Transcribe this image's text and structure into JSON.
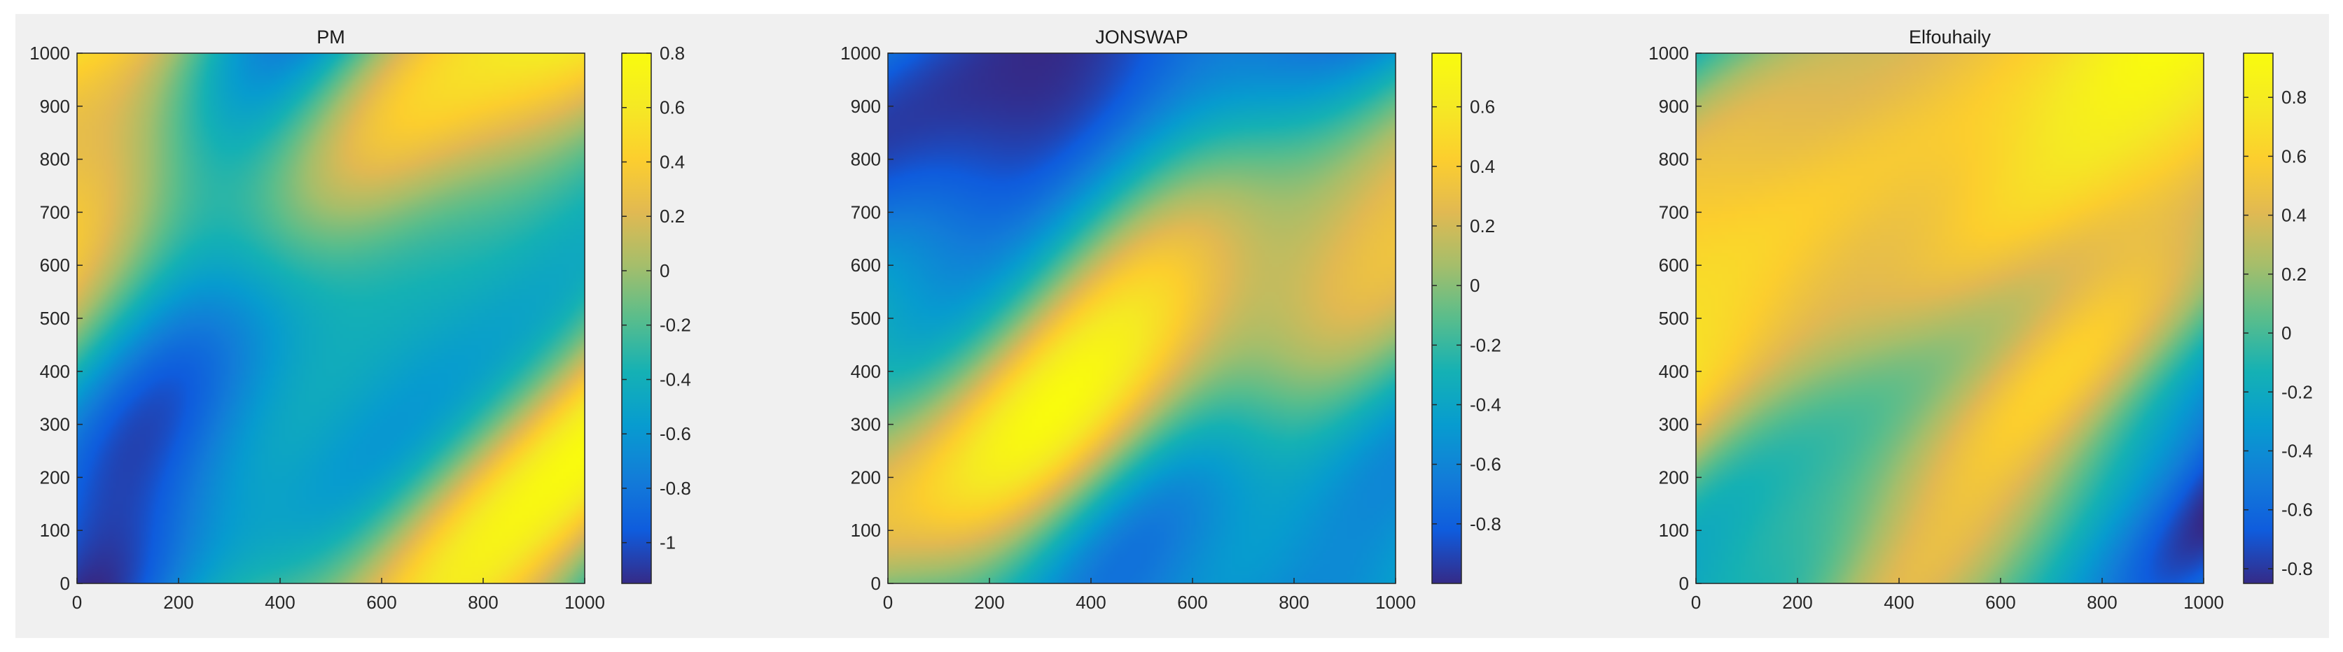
{
  "figure": {
    "background": "#f0f0f0"
  },
  "chart_data": [
    {
      "type": "heatmap",
      "title": "PM",
      "xlabel": "",
      "ylabel": "",
      "xlim": [
        0,
        1000
      ],
      "ylim": [
        0,
        1000
      ],
      "x_ticks": [
        "0",
        "200",
        "400",
        "600",
        "800",
        "1000"
      ],
      "y_ticks": [
        "0",
        "100",
        "200",
        "300",
        "400",
        "500",
        "600",
        "700",
        "800",
        "900",
        "1000"
      ],
      "colorbar": {
        "range": [
          -1.15,
          0.8
        ],
        "ticks": [
          0.8,
          0.6,
          0.4,
          0.2,
          0,
          -0.2,
          -0.4,
          -0.6,
          -0.8,
          -1
        ],
        "tick_labels": [
          "0.8",
          "0.6",
          "0.4",
          "0.2",
          "0",
          "-0.2",
          "-0.4",
          "-0.6",
          "-0.8",
          "-1"
        ],
        "colormap": "parula"
      },
      "pattern": "diagonal wave crests oriented bottom-left to top-right, short-crested, amplitude approx -1.1 to 0.8",
      "seed": 1
    },
    {
      "type": "heatmap",
      "title": "JONSWAP",
      "xlabel": "",
      "ylabel": "",
      "xlim": [
        0,
        1000
      ],
      "ylim": [
        0,
        1000
      ],
      "x_ticks": [
        "0",
        "200",
        "400",
        "600",
        "800",
        "1000"
      ],
      "y_ticks": [
        "0",
        "100",
        "200",
        "300",
        "400",
        "500",
        "600",
        "700",
        "800",
        "900",
        "1000"
      ],
      "colorbar": {
        "range": [
          -1.0,
          0.78
        ],
        "ticks": [
          0.6,
          0.4,
          0.2,
          0,
          -0.2,
          -0.4,
          -0.6,
          -0.8
        ],
        "tick_labels": [
          "0.6",
          "0.4",
          "0.2",
          "0",
          "-0.2",
          "-0.4",
          "-0.6",
          "-0.8"
        ],
        "colormap": "parula"
      },
      "pattern": "long-crested diagonal swell bands oriented bottom-left to top-right, amplitude approx -1.0 to 0.78",
      "seed": 2
    },
    {
      "type": "heatmap",
      "title": "Elfouhaily",
      "xlabel": "",
      "ylabel": "",
      "xlim": [
        0,
        1000
      ],
      "ylim": [
        0,
        1000
      ],
      "x_ticks": [
        "0",
        "200",
        "400",
        "600",
        "800",
        "1000"
      ],
      "y_ticks": [
        "0",
        "100",
        "200",
        "300",
        "400",
        "500",
        "600",
        "700",
        "800",
        "900",
        "1000"
      ],
      "colorbar": {
        "range": [
          -0.85,
          0.95
        ],
        "ticks": [
          0.8,
          0.6,
          0.4,
          0.2,
          0,
          -0.2,
          -0.4,
          -0.6,
          -0.8
        ],
        "tick_labels": [
          "0.8",
          "0.6",
          "0.4",
          "0.2",
          "0",
          "-0.2",
          "-0.4",
          "-0.6",
          "-0.8"
        ],
        "colormap": "parula"
      },
      "pattern": "diagonal wave crests with fine-scale texture, oriented bottom-left to top-right, amplitude approx -0.85 to 0.95",
      "seed": 3
    }
  ]
}
